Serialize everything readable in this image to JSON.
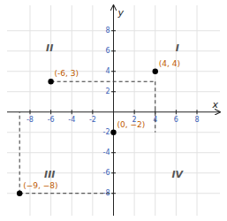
{
  "chart_data": {
    "type": "scatter",
    "xlabel": "x",
    "ylabel": "y",
    "x": [
      4,
      -6,
      -9,
      0
    ],
    "values": [
      4,
      3,
      -8,
      -2
    ],
    "color": "black",
    "guides": [
      {
        "x": [
          -6,
          4
        ],
        "y": [
          3,
          3
        ]
      },
      {
        "x": [
          4,
          4
        ],
        "y": [
          3,
          -2
        ]
      },
      {
        "x": [
          -9,
          0
        ],
        "y": [
          -8,
          -8
        ]
      },
      {
        "x": [
          -9,
          -9
        ],
        "y": [
          -8,
          0
        ]
      }
    ],
    "annotations": [
      {
        "text": "(4, 4)",
        "x": 4,
        "y": 4
      },
      {
        "text": "(-6, 3)",
        "x": -6,
        "y": 3
      },
      {
        "text": "(−9, −8)",
        "x": -9,
        "y": -8
      },
      {
        "text": "(0, −2)",
        "x": 0,
        "y": -2
      }
    ],
    "quadrant_labels": [
      "I",
      "II",
      "III",
      "IV"
    ],
    "xlim": [
      -10.2,
      10.2
    ],
    "ylim": [
      -10.2,
      10.5
    ],
    "xticks": [
      -8,
      -6,
      -4,
      -2,
      2,
      4,
      6,
      8
    ],
    "yticks": [
      -8,
      -6,
      -4,
      -2,
      2,
      4,
      6,
      8
    ],
    "grid": true
  }
}
